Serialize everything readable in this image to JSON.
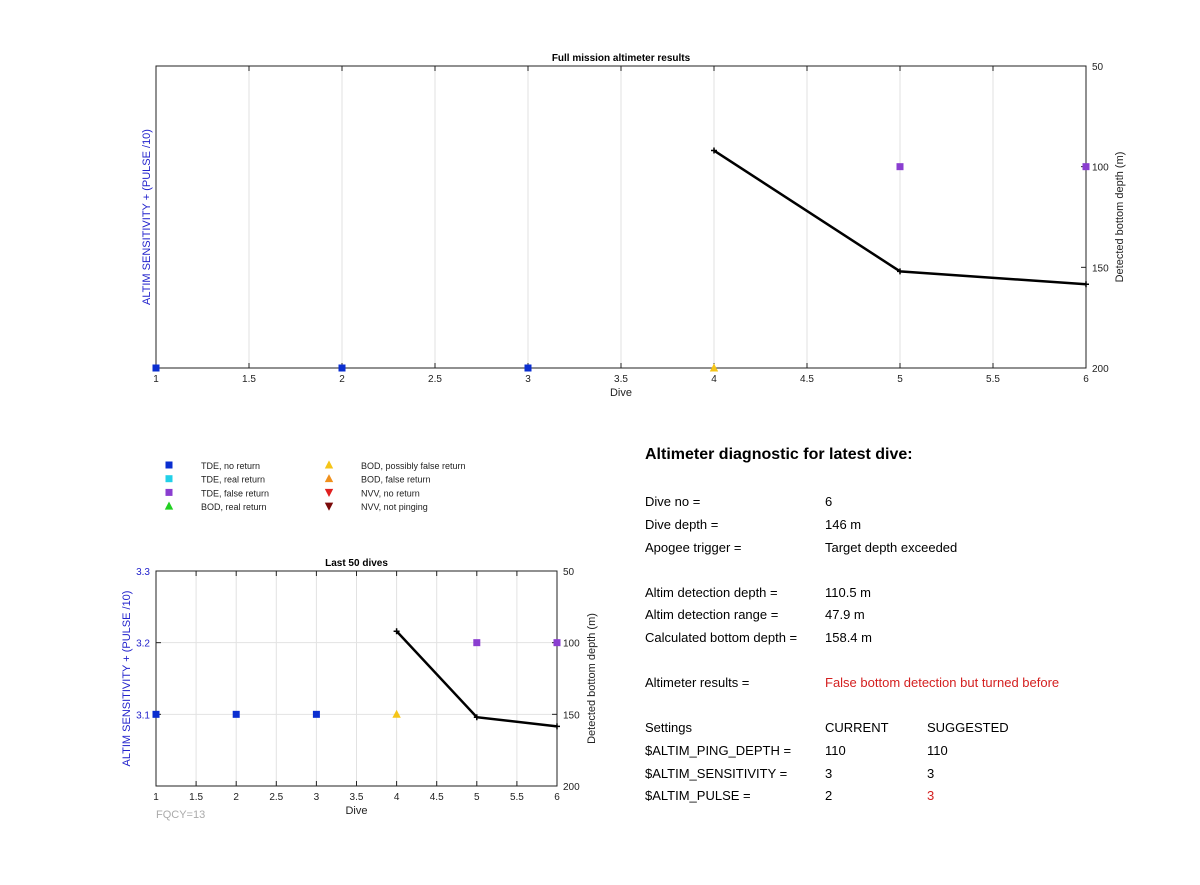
{
  "colors": {
    "tde_no_return": "#0a2ed0",
    "tde_real_return": "#22d0e8",
    "tde_false_return": "#8a3ed0",
    "bod_real_return": "#22d022",
    "bod_possibly_false": "#f5c518",
    "bod_false_return": "#f0901c",
    "nvv_no_return": "#e02020",
    "nvv_not_pinging": "#7a0a0a",
    "axis_blue": "#2222cc",
    "line": "#000000",
    "red_text": "#d42020"
  },
  "legend": {
    "items": [
      {
        "label": "TDE, no return",
        "marker": "square-icon",
        "color": "#0a2ed0"
      },
      {
        "label": "TDE, real return",
        "marker": "square-icon",
        "color": "#22d0e8"
      },
      {
        "label": "TDE, false return",
        "marker": "square-icon",
        "color": "#8a3ed0"
      },
      {
        "label": "BOD, real return",
        "marker": "triangle-up-icon",
        "color": "#22d022"
      },
      {
        "label": "BOD, possibly false return",
        "marker": "triangle-up-icon",
        "color": "#f5c518"
      },
      {
        "label": "BOD, false return",
        "marker": "triangle-up-icon",
        "color": "#f0901c"
      },
      {
        "label": "NVV, no return",
        "marker": "triangle-down-icon",
        "color": "#e02020"
      },
      {
        "label": "NVV, not pinging",
        "marker": "triangle-down-icon",
        "color": "#7a0a0a"
      }
    ]
  },
  "chart_data": [
    {
      "type": "scatter",
      "title": "Full mission altimeter results",
      "xlabel": "Dive",
      "ylabel": "ALTIM SENSITIVITY + (PULSE /10)",
      "ylabel_right": "Detected bottom depth (m)",
      "xlim": [
        1,
        6
      ],
      "x_ticks": [
        "1",
        "1.5",
        "2",
        "2.5",
        "3",
        "3.5",
        "4",
        "4.5",
        "5",
        "5.5",
        "6"
      ],
      "y_right_lim": [
        50,
        200
      ],
      "y_right_reversed": true,
      "y_right_ticks": [
        "50",
        "100",
        "150",
        "200"
      ],
      "grid": "x",
      "markers": [
        {
          "x": 1,
          "y_right": 200,
          "shape": "square",
          "color": "#0a2ed0"
        },
        {
          "x": 2,
          "y_right": 200,
          "shape": "square",
          "color": "#0a2ed0"
        },
        {
          "x": 3,
          "y_right": 200,
          "shape": "square",
          "color": "#0a2ed0"
        },
        {
          "x": 4,
          "y_right": 200,
          "shape": "triangle-up",
          "color": "#f5c518"
        },
        {
          "x": 5,
          "y_right": 100,
          "shape": "square",
          "color": "#8a3ed0"
        },
        {
          "x": 6,
          "y_right": 100,
          "shape": "square",
          "color": "#8a3ed0"
        }
      ],
      "series": [
        {
          "x": [
            4,
            5,
            6
          ],
          "y": [
            92,
            152,
            158.4
          ]
        }
      ]
    },
    {
      "type": "scatter",
      "title": "Last 50 dives",
      "xlabel": "Dive",
      "ylabel": "ALTIM SENSITIVITY + (PULSE /10)",
      "ylabel_right": "Detected bottom depth (m)",
      "xlim": [
        1,
        6
      ],
      "x_ticks": [
        "1",
        "1.5",
        "2",
        "2.5",
        "3",
        "3.5",
        "4",
        "4.5",
        "5",
        "5.5",
        "6"
      ],
      "y_left_lim": [
        3.0,
        3.3
      ],
      "y_left_ticks": [
        "3.1",
        "3.2",
        "3.3"
      ],
      "y_right_lim": [
        50,
        200
      ],
      "y_right_reversed": true,
      "y_right_ticks": [
        "50",
        "100",
        "150",
        "200"
      ],
      "grid": "both",
      "markers": [
        {
          "x": 1,
          "y_left": 3.1,
          "shape": "square",
          "color": "#0a2ed0"
        },
        {
          "x": 2,
          "y_left": 3.1,
          "shape": "square",
          "color": "#0a2ed0"
        },
        {
          "x": 3,
          "y_left": 3.1,
          "shape": "square",
          "color": "#0a2ed0"
        },
        {
          "x": 4,
          "y_left": 3.1,
          "shape": "triangle-up",
          "color": "#f5c518"
        },
        {
          "x": 5,
          "y_left": 3.2,
          "shape": "square",
          "color": "#8a3ed0"
        },
        {
          "x": 6,
          "y_left": 3.2,
          "shape": "square",
          "color": "#8a3ed0"
        }
      ],
      "series": [
        {
          "x": [
            4,
            5,
            6
          ],
          "y": [
            92,
            152,
            158.4
          ]
        }
      ],
      "footnote": "FQCY=13"
    }
  ],
  "diagnostic": {
    "title": "Altimeter diagnostic for latest dive:",
    "dive_no_label": "Dive no =",
    "dive_no": "6",
    "dive_depth_label": "Dive depth =",
    "dive_depth": "146 m",
    "apogee_label": "Apogee trigger =",
    "apogee": "Target depth exceeded",
    "detect_depth_label": "Altim detection depth =",
    "detect_depth": "110.5 m",
    "detect_range_label": "Altim detection range =",
    "detect_range": "47.9 m",
    "bottom_depth_label": "Calculated bottom depth =",
    "bottom_depth": "158.4 m",
    "results_label": "Altimeter results =",
    "results": "False bottom detection but turned before",
    "settings_label": "Settings",
    "current_label": "CURRENT",
    "suggested_label": "SUGGESTED",
    "ping_depth_label": "$ALTIM_PING_DEPTH =",
    "ping_depth_current": "110",
    "ping_depth_suggested": "110",
    "sensitivity_label": "$ALTIM_SENSITIVITY =",
    "sensitivity_current": "3",
    "sensitivity_suggested": "3",
    "pulse_label": "$ALTIM_PULSE =",
    "pulse_current": "2",
    "pulse_suggested": "3"
  }
}
